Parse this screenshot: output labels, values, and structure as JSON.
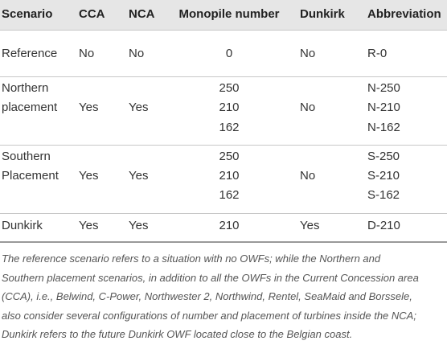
{
  "table": {
    "header": [
      "Scenario",
      "CCA",
      "NCA",
      "Monopile number",
      "Dunkirk",
      "Abbreviation"
    ],
    "rows": [
      {
        "scenario": "Reference",
        "cca": "No",
        "nca": "No",
        "monopile": [
          "0"
        ],
        "dunkirk": "No",
        "abbreviation": [
          "R-0"
        ]
      },
      {
        "scenario": "Northern placement",
        "cca": "Yes",
        "nca": "Yes",
        "monopile": [
          "250",
          "210",
          "162"
        ],
        "dunkirk": "No",
        "abbreviation": [
          "N-250",
          "N-210",
          "N-162"
        ]
      },
      {
        "scenario": "Southern Placement",
        "cca": "Yes",
        "nca": "Yes",
        "monopile": [
          "250",
          "210",
          "162"
        ],
        "dunkirk": "No",
        "abbreviation": [
          "S-250",
          "S-210",
          "S-162"
        ]
      },
      {
        "scenario": "Dunkirk",
        "cca": "Yes",
        "nca": "Yes",
        "monopile": [
          "210"
        ],
        "dunkirk": "Yes",
        "abbreviation": [
          "D-210"
        ]
      }
    ]
  },
  "footnote": [
    "The reference scenario refers to a situation with no OWFs; while the Northern and",
    "Southern placement scenarios, in addition to all the OWFs in the Current Concession area",
    "(CCA), i.e., Belwind, C-Power, Northwester 2, Northwind, Rentel, SeaMaid and Borssele,",
    "also consider several configurations of number and placement of turbines inside the NCA;",
    "Dunkirk refers to the future Dunkirk OWF located close to the Belgian coast."
  ]
}
